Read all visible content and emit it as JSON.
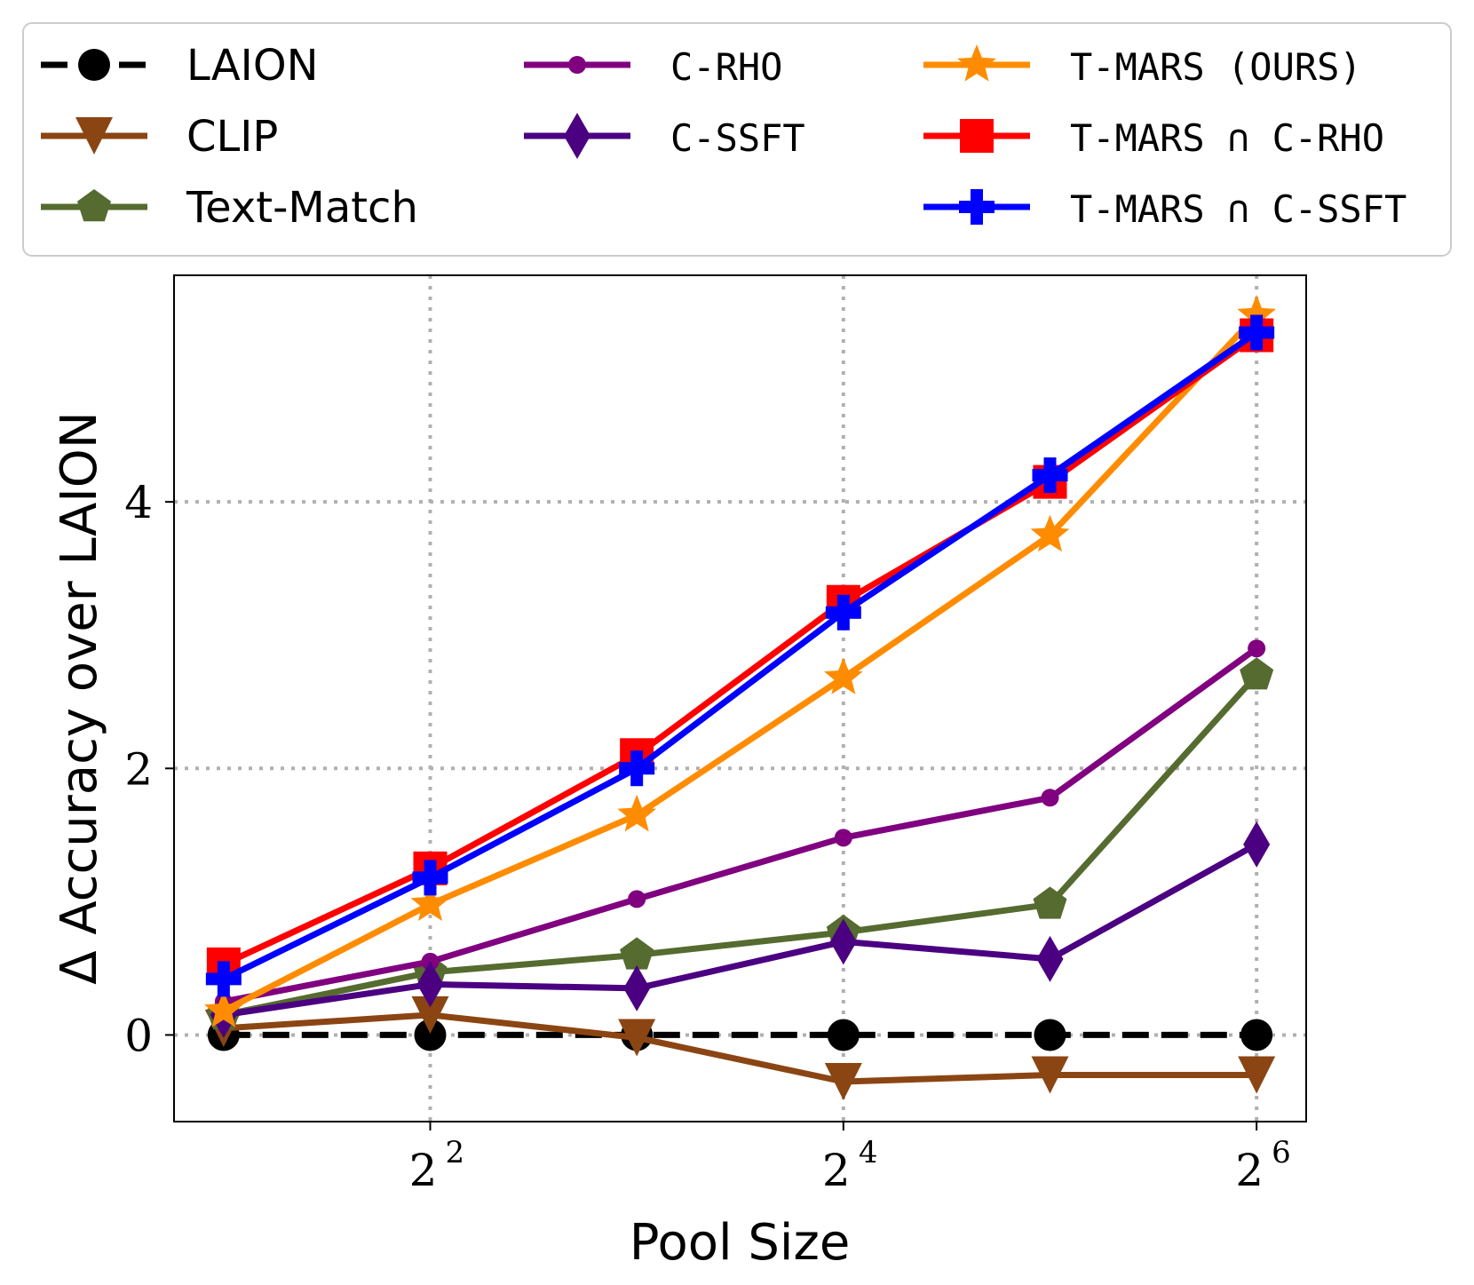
{
  "chart_data": {
    "type": "line",
    "xlabel": "Pool Size",
    "ylabel": "Δ Accuracy over LAION",
    "x_scale": "log2",
    "xlim_log2": [
      0.76,
      6.24
    ],
    "ylim": [
      -0.65,
      5.7
    ],
    "x_ticks": [
      {
        "base": "2",
        "exp": "2",
        "value": 4
      },
      {
        "base": "2",
        "exp": "4",
        "value": 16
      },
      {
        "base": "2",
        "exp": "6",
        "value": 64
      }
    ],
    "y_ticks": [
      0,
      2,
      4
    ],
    "grid": true,
    "x": [
      2,
      4,
      8,
      16,
      32,
      64
    ],
    "series": [
      {
        "name": "LAION",
        "color": "#000000",
        "marker": "circle",
        "dashed": true,
        "values": [
          0,
          0,
          0,
          0,
          0,
          0
        ]
      },
      {
        "name": "CLIP",
        "color": "#8b4513",
        "marker": "triangle-down",
        "values": [
          0.05,
          0.15,
          -0.02,
          -0.35,
          -0.3,
          -0.3
        ]
      },
      {
        "name": "Text-Match",
        "color": "#556b2f",
        "marker": "pentagon",
        "values": [
          0.15,
          0.47,
          0.6,
          0.77,
          0.98,
          2.7
        ]
      },
      {
        "name": "C-RHO",
        "color": "#800080",
        "marker": "small-circle",
        "values": [
          0.25,
          0.55,
          1.02,
          1.48,
          1.78,
          2.9
        ]
      },
      {
        "name": "C-SSFT",
        "color": "#4b0082",
        "marker": "thin-diamond",
        "values": [
          0.15,
          0.38,
          0.35,
          0.7,
          0.57,
          1.43
        ]
      },
      {
        "name": "T-MARS (OURS)",
        "color": "#ff8c00",
        "marker": "star",
        "values": [
          0.18,
          0.98,
          1.65,
          2.68,
          3.75,
          5.4
        ]
      },
      {
        "name": "T-MARS ∩ C-RHO",
        "color": "#ff0000",
        "marker": "square",
        "values": [
          0.53,
          1.25,
          2.1,
          3.25,
          4.15,
          5.25
        ]
      },
      {
        "name": "T-MARS ∩ C-SSFT",
        "color": "#0000ff",
        "marker": "plus",
        "values": [
          0.42,
          1.18,
          2.0,
          3.17,
          4.2,
          5.27
        ]
      }
    ],
    "legend_position": "top"
  }
}
